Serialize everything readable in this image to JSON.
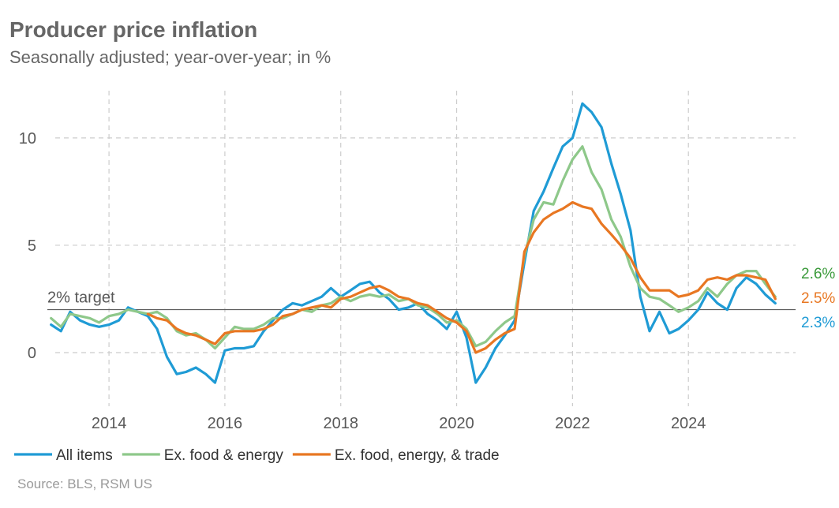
{
  "title": "Producer price inflation",
  "subtitle": "Seasonally adjusted; year-over-year; in %",
  "source": "Source: BLS, RSM US",
  "colors": {
    "all_items": "#1f9bd5",
    "ex_food_energy": "#8ec88a",
    "ex_food_energy_trade": "#e87722",
    "end_label_green": "#3a9a3a",
    "grid": "#cccccc",
    "axis_text": "#595959",
    "target_line": "#595959"
  },
  "chart_data": {
    "type": "line",
    "xlim": [
      2012.8,
      2025.85
    ],
    "ylim": [
      -2.5,
      12.2
    ],
    "x_ticks": [
      2014,
      2016,
      2018,
      2020,
      2022,
      2024
    ],
    "x_tick_labels": [
      "2014",
      "2016",
      "2018",
      "2020",
      "2022",
      "2024"
    ],
    "y_ticks": [
      0,
      5,
      10
    ],
    "y_tick_labels": [
      "0",
      "5",
      "10"
    ],
    "grid": true,
    "legend_position": "bottom",
    "reference_line": {
      "value": 2,
      "label": "2% target"
    },
    "end_labels": [
      {
        "series": "Ex. food & energy",
        "text": "2.6%"
      },
      {
        "series": "Ex. food, energy, & trade",
        "text": "2.5%"
      },
      {
        "series": "All items",
        "text": "2.3%"
      }
    ],
    "series": [
      {
        "name": "All items",
        "x": [
          2013.0,
          2013.17,
          2013.33,
          2013.5,
          2013.67,
          2013.83,
          2014.0,
          2014.17,
          2014.33,
          2014.5,
          2014.67,
          2014.83,
          2015.0,
          2015.17,
          2015.33,
          2015.5,
          2015.67,
          2015.83,
          2016.0,
          2016.17,
          2016.33,
          2016.5,
          2016.67,
          2016.83,
          2017.0,
          2017.17,
          2017.33,
          2017.5,
          2017.67,
          2017.83,
          2018.0,
          2018.17,
          2018.33,
          2018.5,
          2018.67,
          2018.83,
          2019.0,
          2019.17,
          2019.33,
          2019.5,
          2019.67,
          2019.83,
          2020.0,
          2020.17,
          2020.33,
          2020.5,
          2020.67,
          2020.83,
          2021.0,
          2021.17,
          2021.33,
          2021.5,
          2021.67,
          2021.83,
          2022.0,
          2022.17,
          2022.33,
          2022.5,
          2022.67,
          2022.83,
          2023.0,
          2023.17,
          2023.33,
          2023.5,
          2023.67,
          2023.83,
          2024.0,
          2024.17,
          2024.33,
          2024.5,
          2024.67,
          2024.83,
          2025.0,
          2025.17,
          2025.33,
          2025.5
        ],
        "values": [
          1.3,
          1.0,
          1.9,
          1.5,
          1.3,
          1.2,
          1.3,
          1.5,
          2.1,
          1.9,
          1.7,
          1.1,
          -0.2,
          -1.0,
          -0.9,
          -0.7,
          -1.0,
          -1.4,
          0.1,
          0.2,
          0.2,
          0.3,
          1.0,
          1.5,
          2.0,
          2.3,
          2.2,
          2.4,
          2.6,
          3.0,
          2.6,
          2.9,
          3.2,
          3.3,
          2.8,
          2.5,
          2.0,
          2.1,
          2.3,
          1.8,
          1.5,
          1.1,
          1.9,
          0.7,
          -1.4,
          -0.7,
          0.2,
          0.8,
          1.5,
          4.2,
          6.6,
          7.5,
          8.6,
          9.6,
          10.0,
          11.6,
          11.2,
          10.5,
          8.8,
          7.4,
          5.7,
          2.6,
          1.0,
          1.9,
          0.9,
          1.1,
          1.5,
          2.0,
          2.8,
          2.3,
          2.0,
          3.0,
          3.5,
          3.2,
          2.7,
          2.3
        ]
      },
      {
        "name": "Ex. food & energy",
        "x": [
          2013.0,
          2013.17,
          2013.33,
          2013.5,
          2013.67,
          2013.83,
          2014.0,
          2014.17,
          2014.33,
          2014.5,
          2014.67,
          2014.83,
          2015.0,
          2015.17,
          2015.33,
          2015.5,
          2015.67,
          2015.83,
          2016.0,
          2016.17,
          2016.33,
          2016.5,
          2016.67,
          2016.83,
          2017.0,
          2017.17,
          2017.33,
          2017.5,
          2017.67,
          2017.83,
          2018.0,
          2018.17,
          2018.33,
          2018.5,
          2018.67,
          2018.83,
          2019.0,
          2019.17,
          2019.33,
          2019.5,
          2019.67,
          2019.83,
          2020.0,
          2020.17,
          2020.33,
          2020.5,
          2020.67,
          2020.83,
          2021.0,
          2021.17,
          2021.33,
          2021.5,
          2021.67,
          2021.83,
          2022.0,
          2022.17,
          2022.33,
          2022.5,
          2022.67,
          2022.83,
          2023.0,
          2023.17,
          2023.33,
          2023.5,
          2023.67,
          2023.83,
          2024.0,
          2024.17,
          2024.33,
          2024.5,
          2024.67,
          2024.83,
          2025.0,
          2025.17,
          2025.33,
          2025.5
        ],
        "values": [
          1.6,
          1.2,
          1.8,
          1.7,
          1.6,
          1.4,
          1.7,
          1.8,
          2.0,
          1.9,
          1.8,
          1.9,
          1.6,
          1.0,
          0.8,
          0.9,
          0.6,
          0.2,
          0.7,
          1.2,
          1.1,
          1.1,
          1.3,
          1.6,
          1.6,
          1.8,
          2.0,
          1.9,
          2.2,
          2.3,
          2.6,
          2.4,
          2.6,
          2.7,
          2.6,
          2.7,
          2.4,
          2.5,
          2.2,
          2.1,
          1.8,
          1.4,
          1.5,
          1.1,
          0.3,
          0.5,
          1.0,
          1.4,
          1.7,
          4.5,
          6.2,
          7.0,
          6.9,
          8.0,
          9.0,
          9.6,
          8.4,
          7.6,
          6.2,
          5.4,
          4.0,
          3.0,
          2.6,
          2.5,
          2.2,
          1.9,
          2.1,
          2.4,
          3.0,
          2.6,
          3.2,
          3.6,
          3.8,
          3.8,
          3.2,
          2.6
        ]
      },
      {
        "name": "Ex. food, energy, & trade",
        "x": [
          2014.67,
          2014.83,
          2015.0,
          2015.17,
          2015.33,
          2015.5,
          2015.67,
          2015.83,
          2016.0,
          2016.17,
          2016.33,
          2016.5,
          2016.67,
          2016.83,
          2017.0,
          2017.17,
          2017.33,
          2017.5,
          2017.67,
          2017.83,
          2018.0,
          2018.17,
          2018.33,
          2018.5,
          2018.67,
          2018.83,
          2019.0,
          2019.17,
          2019.33,
          2019.5,
          2019.67,
          2019.83,
          2020.0,
          2020.17,
          2020.33,
          2020.5,
          2020.67,
          2020.83,
          2021.0,
          2021.17,
          2021.33,
          2021.5,
          2021.67,
          2021.83,
          2022.0,
          2022.17,
          2022.33,
          2022.5,
          2022.67,
          2022.83,
          2023.0,
          2023.17,
          2023.33,
          2023.5,
          2023.67,
          2023.83,
          2024.0,
          2024.17,
          2024.33,
          2024.5,
          2024.67,
          2024.83,
          2025.0,
          2025.17,
          2025.33,
          2025.5
        ],
        "values": [
          1.8,
          1.6,
          1.5,
          1.1,
          0.9,
          0.8,
          0.6,
          0.4,
          0.9,
          1.0,
          1.0,
          1.0,
          1.1,
          1.3,
          1.7,
          1.8,
          2.0,
          2.1,
          2.2,
          2.1,
          2.5,
          2.6,
          2.8,
          3.0,
          3.1,
          2.9,
          2.6,
          2.5,
          2.3,
          2.2,
          1.9,
          1.6,
          1.4,
          1.0,
          0.0,
          0.2,
          0.6,
          0.9,
          1.1,
          4.7,
          5.6,
          6.2,
          6.5,
          6.7,
          7.0,
          6.8,
          6.7,
          6.0,
          5.5,
          5.0,
          4.4,
          3.5,
          2.9,
          2.9,
          2.9,
          2.6,
          2.7,
          2.9,
          3.4,
          3.5,
          3.4,
          3.6,
          3.6,
          3.5,
          3.4,
          2.5
        ]
      }
    ]
  }
}
